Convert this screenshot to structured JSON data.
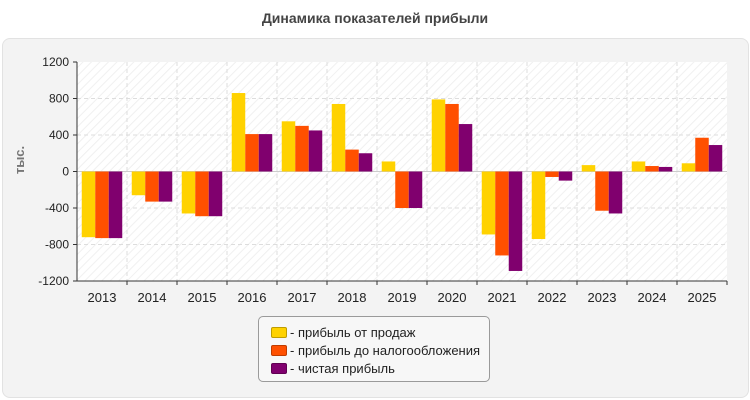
{
  "chart_data": {
    "type": "bar",
    "title": "Динамика показателей прибыли",
    "ylabel": "тыс.",
    "xlabel": "",
    "ylim": [
      -1200,
      1200
    ],
    "yticks": [
      -1200,
      -800,
      -400,
      0,
      400,
      800,
      1200
    ],
    "grid": true,
    "legend_position": "bottom-center",
    "categories": [
      "2013",
      "2014",
      "2015",
      "2016",
      "2017",
      "2018",
      "2019",
      "2020",
      "2021",
      "2022",
      "2023",
      "2024",
      "2025"
    ],
    "series": [
      {
        "name": "- прибыль от продаж",
        "color": "#ffd200",
        "values": [
          -720,
          -260,
          -460,
          860,
          550,
          740,
          110,
          790,
          -690,
          -740,
          70,
          110,
          90
        ]
      },
      {
        "name": "- прибыль до налогообложения",
        "color": "#ff5000",
        "values": [
          -730,
          -330,
          -490,
          410,
          500,
          240,
          -400,
          740,
          -920,
          -60,
          -430,
          60,
          370
        ]
      },
      {
        "name": "- чистая прибыль",
        "color": "#80006e",
        "values": [
          -730,
          -330,
          -490,
          410,
          450,
          200,
          -400,
          520,
          -1090,
          -100,
          -460,
          50,
          290
        ]
      }
    ]
  }
}
